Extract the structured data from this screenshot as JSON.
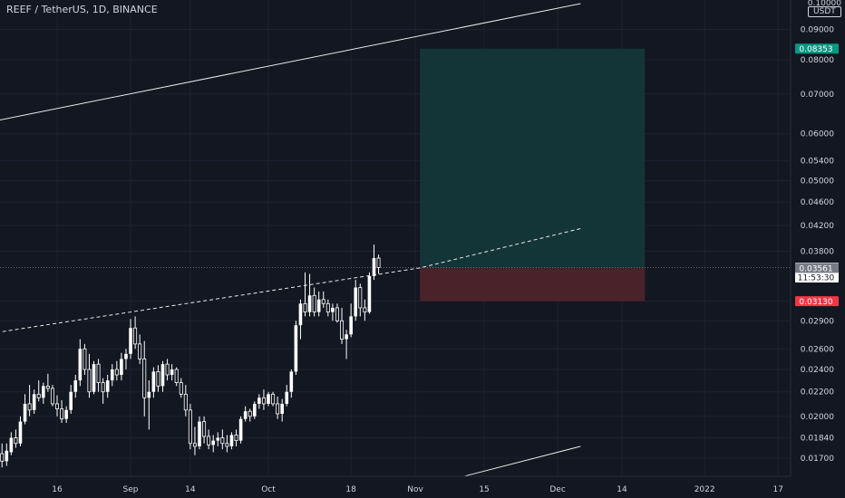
{
  "header": {
    "symbol_title": "REEF / TetherUS, 1D, BINANCE"
  },
  "price_axis": {
    "unit": "USDT",
    "top_label": "0.10000"
  },
  "chart_data": {
    "type": "candlestick",
    "title": "REEF / TetherUS, 1D, BINANCE",
    "scale": "log",
    "ylim": [
      0.0163,
      0.1015
    ],
    "y_ticks": [
      "0.09000",
      "0.08000",
      "0.07000",
      "0.06000",
      "0.05400",
      "0.05000",
      "0.04600",
      "0.04200",
      "0.03800",
      "0.03130",
      "0.02900",
      "0.02600",
      "0.02400",
      "0.02200",
      "0.02000",
      "0.01840",
      "0.01700"
    ],
    "x_labels": [
      "16",
      "Sep",
      "14",
      "Oct",
      "18",
      "Nov",
      "15",
      "Dec",
      "14",
      "2022",
      "17"
    ],
    "x_label_days": [
      0,
      16,
      29,
      46,
      64,
      78,
      93,
      109,
      123,
      141,
      157
    ],
    "day_origin": "2021-08-16",
    "last_price": "0.03567",
    "countdown": "11:53:30",
    "entry_price": "0.03561",
    "target_price": "0.08353",
    "stop_price": "0.03130",
    "position": {
      "type": "long",
      "start_day": 79,
      "end_day": 128,
      "entry": 0.03561,
      "target": 0.08353,
      "stop": 0.0313
    },
    "trend_lines": [
      {
        "style": "solid",
        "points": [
          [
            -16,
            0.0625
          ],
          [
            114,
            0.0995
          ]
        ]
      },
      {
        "style": "dashed",
        "points": [
          [
            -16,
            0.0275
          ],
          [
            79,
            0.03561
          ],
          [
            114,
            0.0415
          ]
        ]
      },
      {
        "style": "solid",
        "points": [
          [
            88,
            0.0158
          ],
          [
            114,
            0.0178
          ]
        ]
      }
    ],
    "colors": {
      "up": "#ffffff",
      "down": "#ffffff",
      "background": "#131722",
      "target_zone": "#143537",
      "stop_zone": "#4a2229",
      "target_badge": "#089981",
      "stop_badge": "#f23645",
      "entry_badge": "#787b86"
    },
    "candles_ohlc": [
      [
        0.0173,
        0.018,
        0.0164,
        0.0168
      ],
      [
        0.0168,
        0.018,
        0.0165,
        0.0175
      ],
      [
        0.0174,
        0.0188,
        0.0172,
        0.0184
      ],
      [
        0.0184,
        0.019,
        0.0177,
        0.018
      ],
      [
        0.018,
        0.02,
        0.0178,
        0.0196
      ],
      [
        0.0196,
        0.0218,
        0.0194,
        0.021
      ],
      [
        0.021,
        0.0226,
        0.02,
        0.0205
      ],
      [
        0.0205,
        0.0222,
        0.0202,
        0.0218
      ],
      [
        0.0218,
        0.023,
        0.0212,
        0.0215
      ],
      [
        0.0215,
        0.0228,
        0.021,
        0.0225
      ],
      [
        0.0225,
        0.0236,
        0.022,
        0.0223
      ],
      [
        0.0223,
        0.0226,
        0.0208,
        0.021
      ],
      [
        0.021,
        0.0217,
        0.02,
        0.0206
      ],
      [
        0.0206,
        0.0213,
        0.0195,
        0.0198
      ],
      [
        0.0198,
        0.0208,
        0.0195,
        0.0205
      ],
      [
        0.0205,
        0.0226,
        0.0202,
        0.022
      ],
      [
        0.022,
        0.0235,
        0.0215,
        0.023
      ],
      [
        0.023,
        0.027,
        0.0225,
        0.026
      ],
      [
        0.026,
        0.0265,
        0.0235,
        0.024
      ],
      [
        0.024,
        0.0255,
        0.0215,
        0.022
      ],
      [
        0.022,
        0.0248,
        0.0218,
        0.0245
      ],
      [
        0.0245,
        0.025,
        0.022,
        0.0228
      ],
      [
        0.0228,
        0.0232,
        0.021,
        0.022
      ],
      [
        0.022,
        0.0235,
        0.0215,
        0.023
      ],
      [
        0.023,
        0.0245,
        0.0225,
        0.024
      ],
      [
        0.024,
        0.0248,
        0.023,
        0.0235
      ],
      [
        0.0235,
        0.0256,
        0.023,
        0.025
      ],
      [
        0.025,
        0.026,
        0.024,
        0.0255
      ],
      [
        0.0255,
        0.0292,
        0.025,
        0.0282
      ],
      [
        0.0282,
        0.0295,
        0.026,
        0.0265
      ],
      [
        0.0265,
        0.0275,
        0.0245,
        0.025
      ],
      [
        0.025,
        0.0268,
        0.02,
        0.0215
      ],
      [
        0.0215,
        0.023,
        0.019,
        0.022
      ],
      [
        0.022,
        0.0242,
        0.0215,
        0.0238
      ],
      [
        0.0238,
        0.0244,
        0.022,
        0.0225
      ],
      [
        0.0225,
        0.0248,
        0.022,
        0.0245
      ],
      [
        0.0245,
        0.025,
        0.023,
        0.0235
      ],
      [
        0.0235,
        0.0245,
        0.023,
        0.024
      ],
      [
        0.024,
        0.0242,
        0.0225,
        0.0228
      ],
      [
        0.0228,
        0.0232,
        0.0215,
        0.0218
      ],
      [
        0.0218,
        0.0226,
        0.02,
        0.0205
      ],
      [
        0.0205,
        0.021,
        0.0176,
        0.018
      ],
      [
        0.018,
        0.0192,
        0.0172,
        0.0178
      ],
      [
        0.0178,
        0.02,
        0.0176,
        0.0196
      ],
      [
        0.0196,
        0.02,
        0.018,
        0.0185
      ],
      [
        0.0185,
        0.019,
        0.0176,
        0.0179
      ],
      [
        0.0179,
        0.0186,
        0.0174,
        0.0182
      ],
      [
        0.0182,
        0.0188,
        0.0178,
        0.0184
      ],
      [
        0.0184,
        0.019,
        0.0176,
        0.018
      ],
      [
        0.018,
        0.0186,
        0.0174,
        0.0178
      ],
      [
        0.0178,
        0.0188,
        0.0176,
        0.0186
      ],
      [
        0.0186,
        0.019,
        0.0178,
        0.0182
      ],
      [
        0.0182,
        0.02,
        0.018,
        0.0198
      ],
      [
        0.0198,
        0.0208,
        0.0196,
        0.0204
      ],
      [
        0.0204,
        0.0206,
        0.0196,
        0.02
      ],
      [
        0.02,
        0.0212,
        0.0198,
        0.021
      ],
      [
        0.021,
        0.0218,
        0.0206,
        0.0215
      ],
      [
        0.0215,
        0.0222,
        0.0205,
        0.021
      ],
      [
        0.021,
        0.022,
        0.0208,
        0.0218
      ],
      [
        0.0218,
        0.022,
        0.0208,
        0.021
      ],
      [
        0.021,
        0.0216,
        0.0198,
        0.0202
      ],
      [
        0.0202,
        0.0214,
        0.0196,
        0.021
      ],
      [
        0.021,
        0.0226,
        0.0208,
        0.022
      ],
      [
        0.022,
        0.024,
        0.0215,
        0.0238
      ],
      [
        0.0238,
        0.029,
        0.0235,
        0.0285
      ],
      [
        0.0285,
        0.0315,
        0.027,
        0.031
      ],
      [
        0.031,
        0.035,
        0.0295,
        0.03
      ],
      [
        0.03,
        0.0348,
        0.0295,
        0.032
      ],
      [
        0.032,
        0.033,
        0.0295,
        0.03
      ],
      [
        0.03,
        0.0325,
        0.0295,
        0.0315
      ],
      [
        0.0315,
        0.0325,
        0.0305,
        0.031
      ],
      [
        0.031,
        0.0315,
        0.0295,
        0.03
      ],
      [
        0.03,
        0.031,
        0.029,
        0.0305
      ],
      [
        0.0305,
        0.031,
        0.0288,
        0.029
      ],
      [
        0.029,
        0.0305,
        0.0265,
        0.027
      ],
      [
        0.027,
        0.028,
        0.025,
        0.0275
      ],
      [
        0.0275,
        0.031,
        0.0272,
        0.0295
      ],
      [
        0.0295,
        0.034,
        0.029,
        0.033
      ],
      [
        0.033,
        0.0335,
        0.0295,
        0.0305
      ],
      [
        0.0305,
        0.0315,
        0.029,
        0.03
      ],
      [
        0.03,
        0.035,
        0.0298,
        0.0345
      ],
      [
        0.0345,
        0.039,
        0.034,
        0.037
      ],
      [
        0.037,
        0.0375,
        0.0348,
        0.03567
      ]
    ]
  }
}
